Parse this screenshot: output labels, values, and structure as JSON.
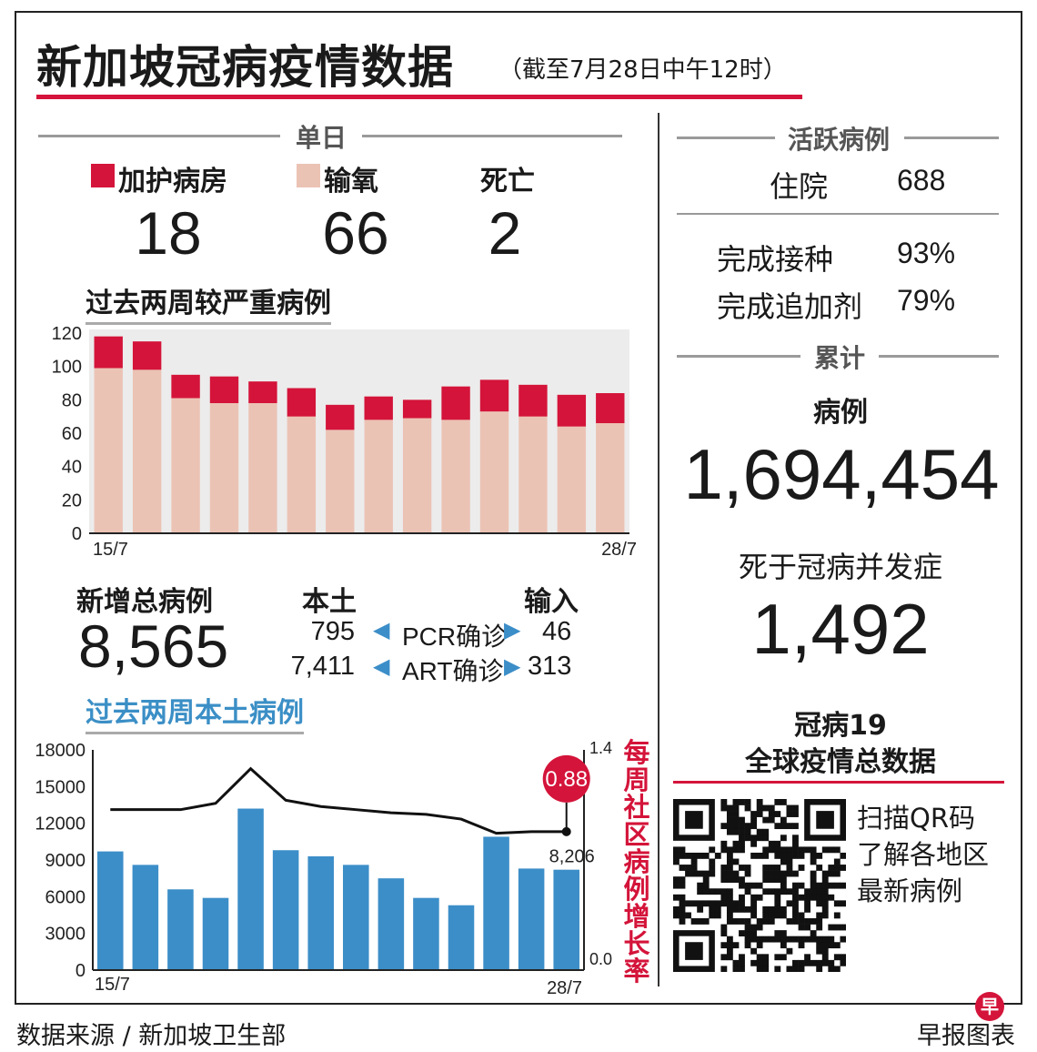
{
  "title": "新加坡冠病疫情数据",
  "subtitle": "（截至7月28日中午12时）",
  "daily": {
    "heading": "单日",
    "icu_label": "加护病房",
    "oxygen_label": "输氧",
    "death_label": "死亡",
    "icu": "18",
    "oxygen": "66",
    "death": "2"
  },
  "severe_title": "过去两周较严重病例",
  "new_cases": {
    "label": "新增总病例",
    "total": "8,565",
    "local_label": "本土",
    "import_label": "输入",
    "pcr_label": "PCR确诊",
    "art_label": "ART确诊",
    "pcr_local": "795",
    "pcr_import": "46",
    "art_local": "7,411",
    "art_import": "313"
  },
  "local_title": "过去两周本土病例",
  "growth_vertical": "每周社区病例增长率",
  "active": {
    "heading": "活跃病例",
    "hosp_label": "住院",
    "hosp_value": "688",
    "vacc_label": "完成接种",
    "vacc_value": "93%",
    "booster_label": "完成追加剂",
    "booster_value": "79%"
  },
  "cumulative": {
    "heading": "累计",
    "cases_label": "病例",
    "cases_value": "1,694,454",
    "deaths_label": "死于冠病并发症",
    "deaths_value": "1,492"
  },
  "global": {
    "line1": "冠病19",
    "line2": "全球疫情总数据",
    "qr_line1": "扫描QR码",
    "qr_line2": "了解各地区",
    "qr_line3": "最新病例"
  },
  "footer": {
    "source": "数据来源 / 新加坡卫生部",
    "credit": "早报图表",
    "badge": "早"
  },
  "colors": {
    "red": "#d4143a",
    "pink": "#ebc3b5",
    "blue": "#3c8ec8",
    "teal_title": "#3b8fc6"
  },
  "chart_data": [
    {
      "type": "bar",
      "stacked": true,
      "x_start_label": "15/7",
      "x_end_label": "28/7",
      "ylim": [
        0,
        120
      ],
      "yticks": [
        0,
        20,
        40,
        60,
        80,
        100,
        120
      ],
      "series": [
        {
          "name": "输氧",
          "values": [
            99,
            98,
            81,
            78,
            78,
            70,
            62,
            68,
            69,
            68,
            73,
            70,
            64,
            66
          ]
        },
        {
          "name": "加护病房",
          "values": [
            19,
            17,
            14,
            16,
            13,
            17,
            15,
            14,
            11,
            20,
            19,
            19,
            19,
            18
          ]
        }
      ]
    },
    {
      "type": "bar",
      "x_start_label": "15/7",
      "x_end_label": "28/7",
      "ylim": [
        0,
        18000
      ],
      "yticks": [
        0,
        3000,
        6000,
        9000,
        12000,
        15000,
        18000
      ],
      "values": [
        9700,
        8600,
        6600,
        5900,
        13200,
        9800,
        9300,
        8600,
        7500,
        5900,
        5300,
        10900,
        8300,
        8206
      ],
      "last_value_label": "8,206",
      "line": {
        "axis": "right",
        "ylim": [
          0.0,
          1.4
        ],
        "yticks": [
          "0.0",
          "1.4"
        ],
        "values": [
          1.02,
          1.02,
          1.02,
          1.06,
          1.28,
          1.08,
          1.04,
          1.02,
          1.0,
          0.99,
          0.96,
          0.87,
          0.88,
          0.88
        ],
        "last_label": "0.88"
      }
    }
  ]
}
